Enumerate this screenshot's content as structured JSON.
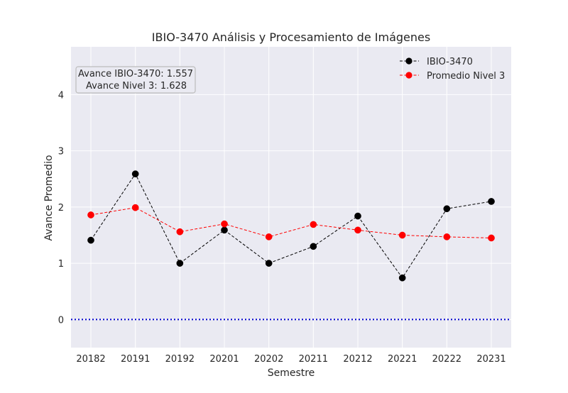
{
  "chart_data": {
    "type": "line",
    "title": "IBIO-3470 Análisis y Procesamiento de Imágenes",
    "xlabel": "Semestre",
    "ylabel": "Avance Promedio",
    "categories": [
      "20182",
      "20191",
      "20192",
      "20201",
      "20202",
      "20211",
      "20212",
      "20221",
      "20222",
      "20231"
    ],
    "yticks": [
      0,
      1,
      2,
      3,
      4
    ],
    "ylim": [
      -0.5,
      4.85
    ],
    "grid": true,
    "legend_position": "top-right",
    "series": [
      {
        "name": "IBIO-3470",
        "color": "#000000",
        "line_style": "dashed",
        "values": [
          1.41,
          2.59,
          1.0,
          1.59,
          1.0,
          1.3,
          1.84,
          0.74,
          1.97,
          2.1
        ]
      },
      {
        "name": "Promedio Nivel 3",
        "color": "#ff0000",
        "line_style": "dashed",
        "values": [
          1.86,
          1.99,
          1.56,
          1.7,
          1.47,
          1.69,
          1.59,
          1.5,
          1.47,
          1.45
        ]
      }
    ],
    "reference_line": {
      "value": 0,
      "color": "#0000cc",
      "line_style": "dotted"
    },
    "annotation": {
      "lines": [
        "Avance IBIO-3470: 1.557",
        "Avance Nivel 3: 1.628"
      ]
    },
    "colors": {
      "plot_background": "#eaeaf2",
      "grid": "#ffffff"
    }
  }
}
